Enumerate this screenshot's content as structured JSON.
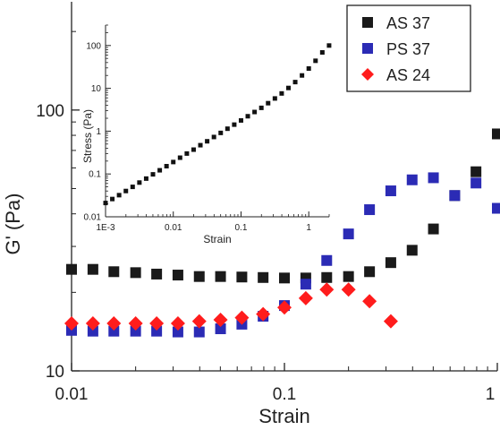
{
  "chart_data": [
    {
      "type": "scatter",
      "title": "",
      "xlabel": "Strain",
      "ylabel": "G' (Pa)",
      "xscale": "log",
      "yscale": "log",
      "xlim": [
        0.01,
        1
      ],
      "ylim": [
        10,
        260
      ],
      "x_ticks": [
        {
          "v": 0.01,
          "label": "0.01"
        },
        {
          "v": 0.1,
          "label": "0.1"
        },
        {
          "v": 1,
          "label": "1"
        }
      ],
      "y_ticks": [
        {
          "v": 10,
          "label": "10"
        },
        {
          "v": 100,
          "label": "100"
        }
      ],
      "legend_position": "top-right",
      "series": [
        {
          "name": "AS 37",
          "marker": "square",
          "color": "#1a1a1a",
          "x": [
            0.01,
            0.0126,
            0.0158,
            0.02,
            0.0251,
            0.0316,
            0.0398,
            0.0501,
            0.0631,
            0.0794,
            0.1,
            0.126,
            0.158,
            0.2,
            0.251,
            0.316,
            0.398,
            0.501,
            0.631,
            0.794,
            1.0
          ],
          "y": [
            24.5,
            24.5,
            24.0,
            23.8,
            23.5,
            23.3,
            23.0,
            23.0,
            22.9,
            22.8,
            22.7,
            22.7,
            22.8,
            23.0,
            24.0,
            26.0,
            29.0,
            35.0,
            47.0,
            58.0,
            81.0
          ]
        },
        {
          "name": "PS 37",
          "marker": "square",
          "color": "#2b2bb5",
          "x": [
            0.01,
            0.0126,
            0.0158,
            0.02,
            0.0251,
            0.0316,
            0.0398,
            0.0501,
            0.0631,
            0.0794,
            0.1,
            0.126,
            0.158,
            0.2,
            0.251,
            0.316,
            0.398,
            0.501,
            0.631,
            0.794,
            1.0
          ],
          "y": [
            14.3,
            14.2,
            14.2,
            14.2,
            14.2,
            14.1,
            14.1,
            14.5,
            15.1,
            16.2,
            17.8,
            21.5,
            26.5,
            33.5,
            41.5,
            49.0,
            54.0,
            55.0,
            47.0,
            52.5,
            42.0
          ]
        },
        {
          "name": "AS 24",
          "marker": "diamond",
          "color": "#ff1c1c",
          "x": [
            0.01,
            0.0126,
            0.0158,
            0.02,
            0.0251,
            0.0316,
            0.0398,
            0.0501,
            0.0631,
            0.0794,
            0.1,
            0.126,
            0.158,
            0.2,
            0.251,
            0.316
          ],
          "y": [
            15.2,
            15.2,
            15.2,
            15.2,
            15.2,
            15.2,
            15.5,
            15.7,
            16.0,
            16.5,
            17.5,
            19.0,
            20.5,
            20.5,
            18.5,
            15.5
          ]
        }
      ]
    },
    {
      "type": "scatter",
      "title": "",
      "xlabel": "Strain",
      "ylabel": "Stress (Pa)",
      "xscale": "log",
      "yscale": "log",
      "xlim": [
        0.001,
        2
      ],
      "ylim": [
        0.01,
        300
      ],
      "x_ticks": [
        {
          "v": 0.001,
          "label": "1E-3"
        },
        {
          "v": 0.01,
          "label": "0.01"
        },
        {
          "v": 0.1,
          "label": "0.1"
        },
        {
          "v": 1,
          "label": "1"
        }
      ],
      "y_ticks": [
        {
          "v": 0.01,
          "label": "0.01"
        },
        {
          "v": 0.1,
          "label": "0.1"
        },
        {
          "v": 1,
          "label": "1"
        },
        {
          "v": 10,
          "label": "10"
        },
        {
          "v": 100,
          "label": "100"
        }
      ],
      "series": [
        {
          "marker": "square",
          "color": "#111111",
          "x_log_start": -3,
          "x_log_step": 0.1,
          "y": [
            0.021,
            0.026,
            0.032,
            0.04,
            0.05,
            0.063,
            0.078,
            0.098,
            0.122,
            0.152,
            0.19,
            0.24,
            0.3,
            0.37,
            0.47,
            0.58,
            0.73,
            0.91,
            1.14,
            1.42,
            1.78,
            2.23,
            2.8,
            3.5,
            4.5,
            5.8,
            7.6,
            10.2,
            14.0,
            20.0,
            29.0,
            44.0,
            69.0,
            100.0
          ]
        }
      ]
    }
  ],
  "legend": {
    "items": [
      {
        "label": "AS 37",
        "color": "#1a1a1a",
        "marker": "square"
      },
      {
        "label": "PS 37",
        "color": "#2b2bb5",
        "marker": "square"
      },
      {
        "label": "AS 24",
        "color": "#ff1c1c",
        "marker": "diamond"
      }
    ]
  }
}
